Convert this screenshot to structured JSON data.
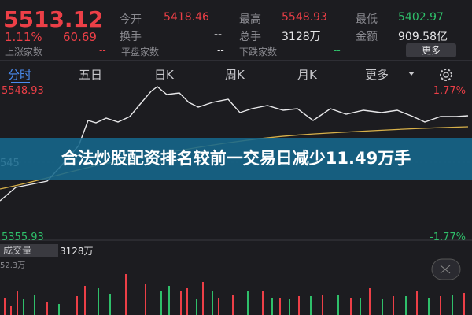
{
  "quote": {
    "price": "5513.12",
    "change_pct": "1.11%",
    "change": "60.69"
  },
  "stats": [
    {
      "label": "今开",
      "value": "5418.46"
    },
    {
      "label": "最高",
      "value": "5548.93"
    },
    {
      "label": "最低",
      "value": "5402.97"
    },
    {
      "label": "换手",
      "value": "--"
    },
    {
      "label": "总手",
      "value": "3128万"
    },
    {
      "label": "金额",
      "value": "909.58亿"
    },
    {
      "label": "上涨家数",
      "value": "--"
    },
    {
      "label": "平盘家数",
      "value": "--"
    },
    {
      "label": "下跌家数",
      "value": "--"
    }
  ],
  "more_button": "更多",
  "tabs": [
    "分时",
    "五日",
    "日K",
    "周K",
    "月K",
    "更多"
  ],
  "chart": {
    "high_price": "5548.93",
    "high_pct": "1.77%",
    "mid_price": "545",
    "low_price": "5355.93",
    "low_pct": "-1.77%"
  },
  "volume": {
    "label": "成交量",
    "value": "3128万",
    "scale": "52.3万"
  },
  "banner": "合法炒股配资排名较前一交易日减少11.49万手"
}
